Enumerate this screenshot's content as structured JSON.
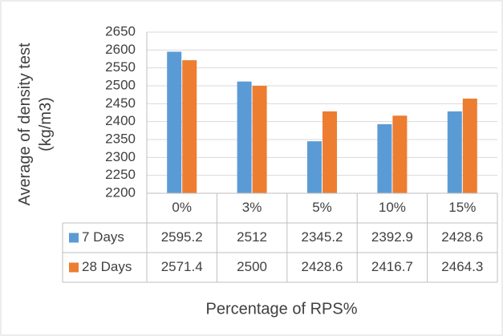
{
  "chart_data": {
    "type": "bar",
    "ylabel": "Average of density test (kg/m3)",
    "xlabel": "Percentage of RPS%",
    "categories": [
      "0%",
      "3%",
      "5%",
      "10%",
      "15%"
    ],
    "series": [
      {
        "name": "7 Days",
        "color": "#5b9bd5",
        "values": [
          2595.2,
          2512,
          2345.2,
          2392.9,
          2428.6
        ]
      },
      {
        "name": "28 Days",
        "color": "#ed7d31",
        "values": [
          2571.4,
          2500,
          2428.6,
          2416.7,
          2464.3
        ]
      }
    ],
    "ylim": [
      2200,
      2650
    ],
    "yticks": [
      2200,
      2250,
      2300,
      2350,
      2400,
      2450,
      2500,
      2550,
      2600,
      2650
    ],
    "grid": true,
    "data_table": true
  }
}
